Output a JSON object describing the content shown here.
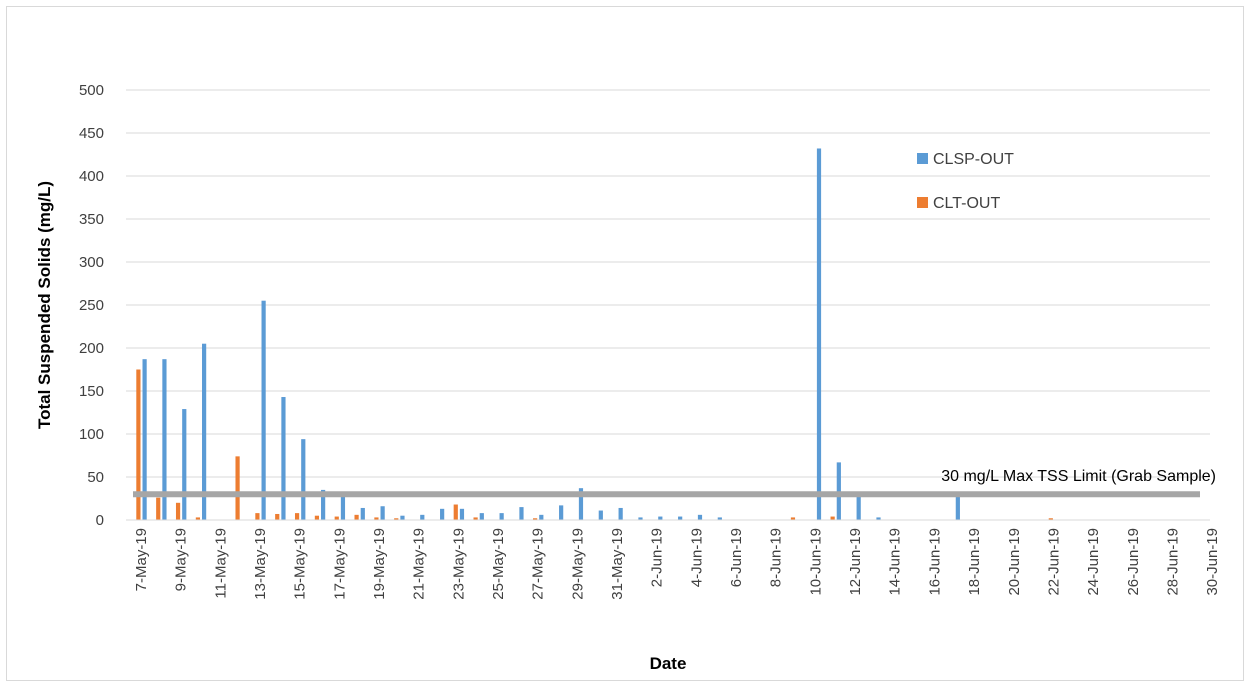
{
  "chart_data": {
    "type": "bar",
    "xlabel": "Date",
    "ylabel": "Total Suspended Solids (mg/L)",
    "ylim": [
      0,
      500
    ],
    "y_ticks": [
      "0",
      "50",
      "100",
      "150",
      "200",
      "250",
      "300",
      "350",
      "400",
      "450",
      "500"
    ],
    "grid": "horizontal",
    "legend_position": "upper-right",
    "categories": [
      "7-May-19",
      "8-May-19",
      "9-May-19",
      "10-May-19",
      "11-May-19",
      "12-May-19",
      "13-May-19",
      "14-May-19",
      "15-May-19",
      "16-May-19",
      "17-May-19",
      "18-May-19",
      "19-May-19",
      "20-May-19",
      "21-May-19",
      "22-May-19",
      "23-May-19",
      "24-May-19",
      "25-May-19",
      "26-May-19",
      "27-May-19",
      "28-May-19",
      "29-May-19",
      "30-May-19",
      "31-May-19",
      "1-Jun-19",
      "2-Jun-19",
      "3-Jun-19",
      "4-Jun-19",
      "5-Jun-19",
      "6-Jun-19",
      "7-Jun-19",
      "8-Jun-19",
      "9-Jun-19",
      "10-Jun-19",
      "11-Jun-19",
      "12-Jun-19",
      "13-Jun-19",
      "14-Jun-19",
      "15-Jun-19",
      "16-Jun-19",
      "17-Jun-19",
      "18-Jun-19",
      "19-Jun-19",
      "20-Jun-19",
      "21-Jun-19",
      "22-Jun-19",
      "23-Jun-19",
      "24-Jun-19",
      "25-Jun-19",
      "26-Jun-19",
      "27-Jun-19",
      "28-Jun-19",
      "29-Jun-19",
      "30-Jun-19"
    ],
    "tick_labels": [
      "7-May-19",
      "9-May-19",
      "11-May-19",
      "13-May-19",
      "15-May-19",
      "17-May-19",
      "19-May-19",
      "21-May-19",
      "23-May-19",
      "25-May-19",
      "27-May-19",
      "29-May-19",
      "31-May-19",
      "2-Jun-19",
      "4-Jun-19",
      "6-Jun-19",
      "8-Jun-19",
      "10-Jun-19",
      "12-Jun-19",
      "14-Jun-19",
      "16-Jun-19",
      "18-Jun-19",
      "20-Jun-19",
      "22-Jun-19",
      "24-Jun-19",
      "26-Jun-19",
      "28-Jun-19",
      "30-Jun-19"
    ],
    "series": [
      {
        "name": "CLSP-OUT",
        "color": "#5B9BD5",
        "values": [
          187,
          187,
          129,
          205,
          null,
          null,
          255,
          143,
          94,
          35,
          28,
          14,
          16,
          5,
          6,
          13,
          13,
          8,
          8,
          15,
          6,
          17,
          37,
          11,
          14,
          3,
          4,
          4,
          6,
          3,
          null,
          null,
          null,
          null,
          432,
          67,
          28,
          3,
          null,
          null,
          null,
          30,
          null,
          null,
          null,
          null,
          null,
          null,
          null,
          null,
          null,
          null,
          null,
          null,
          null
        ]
      },
      {
        "name": "CLT-OUT",
        "color": "#ED7D31",
        "values": [
          175,
          26,
          20,
          3,
          null,
          74,
          8,
          7,
          8,
          5,
          4,
          6,
          3,
          2,
          null,
          null,
          18,
          3,
          null,
          null,
          2,
          null,
          null,
          null,
          null,
          null,
          null,
          null,
          null,
          null,
          null,
          null,
          null,
          3,
          null,
          4,
          null,
          null,
          null,
          null,
          null,
          null,
          null,
          null,
          null,
          null,
          2,
          null,
          null,
          null,
          null,
          null,
          null,
          null,
          null
        ]
      }
    ],
    "reference_line": {
      "value": 30,
      "label": "30 mg/L Max TSS Limit (Grab Sample)",
      "color": "#A6A6A6"
    }
  }
}
